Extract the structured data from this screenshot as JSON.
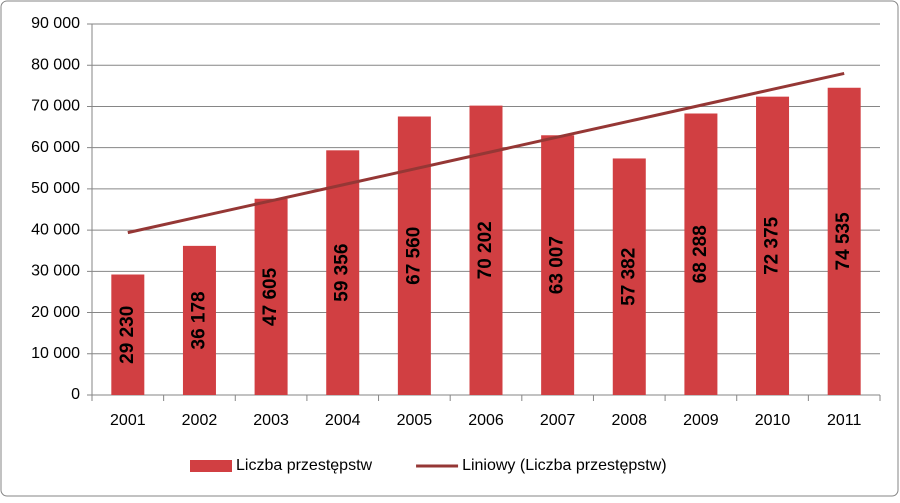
{
  "chart_data": {
    "type": "bar",
    "categories": [
      "2001",
      "2002",
      "2003",
      "2004",
      "2005",
      "2006",
      "2007",
      "2008",
      "2009",
      "2010",
      "2011"
    ],
    "series": [
      {
        "name": "Liczba przestępstw",
        "type": "bar",
        "color": "#d13f42",
        "values": [
          29230,
          36178,
          47605,
          59356,
          67560,
          70202,
          63007,
          57382,
          68288,
          72375,
          74535
        ],
        "value_labels": [
          "29 230",
          "36 178",
          "47 605",
          "59 356",
          "67 560",
          "70 202",
          "63 007",
          "57 382",
          "68 288",
          "72 375",
          "74 535"
        ]
      },
      {
        "name": "Liniowy (Liczba przestępstw)",
        "type": "line",
        "color": "#953735",
        "values": [
          39390,
          43252,
          47115,
          50977,
          54839,
          58702,
          62564,
          66426,
          70289,
          74151,
          78014
        ]
      }
    ],
    "ylim": [
      0,
      90000
    ],
    "yticks": [
      0,
      {
        "value": 10000,
        "label": "10 000"
      },
      {
        "value": 20000,
        "label": "20 000"
      },
      {
        "value": 30000,
        "label": "30 000"
      },
      {
        "value": 40000,
        "label": "40 000"
      },
      {
        "value": 50000,
        "label": "50 000"
      },
      {
        "value": 60000,
        "label": "60 000"
      },
      {
        "value": 70000,
        "label": "70 000"
      },
      {
        "value": 80000,
        "label": "80 000"
      },
      {
        "value": 90000,
        "label": "90 000"
      }
    ],
    "grid": true,
    "legend": "bottom"
  }
}
